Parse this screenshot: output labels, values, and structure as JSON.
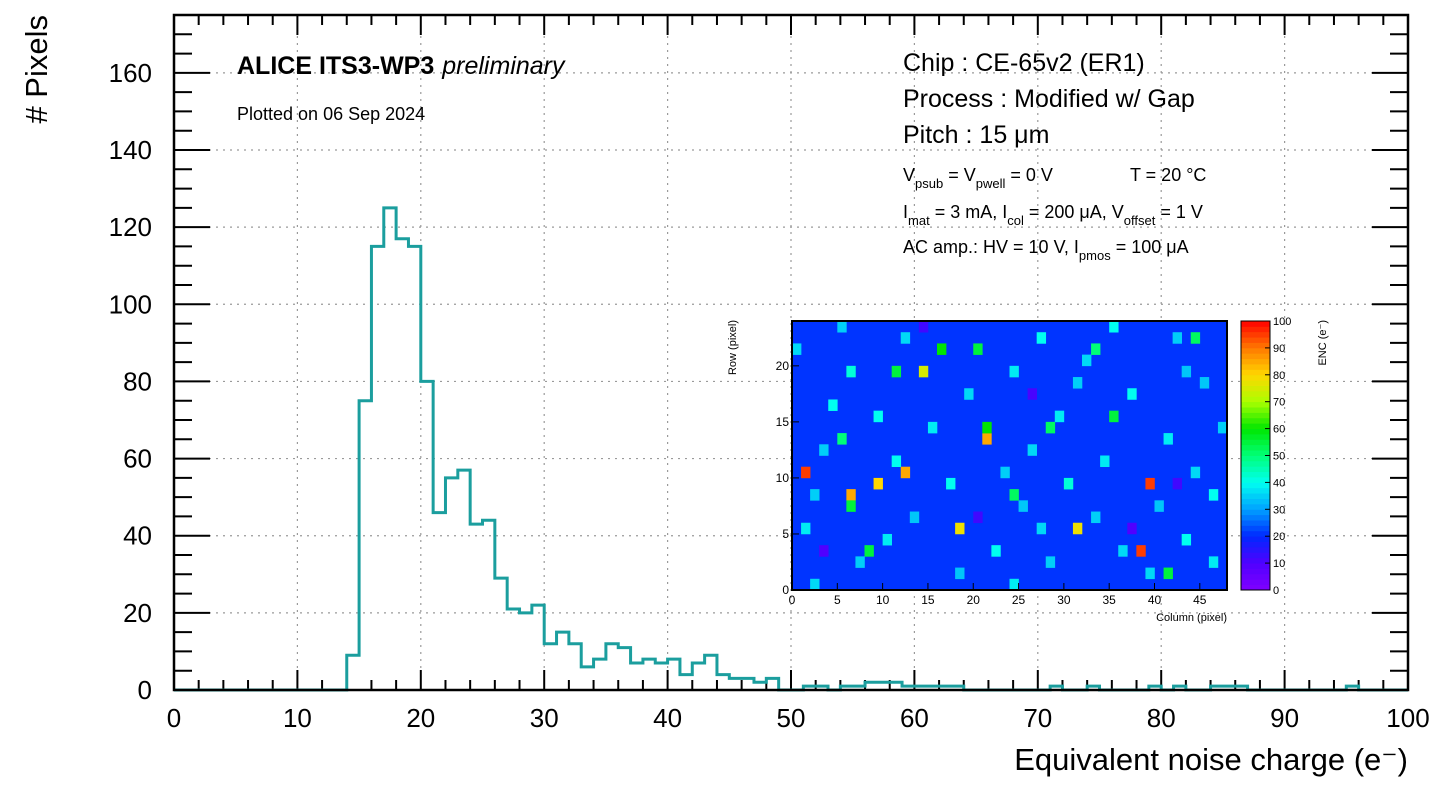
{
  "chart_data": [
    {
      "type": "histogram",
      "xlabel": "Equivalent noise charge (e⁻)",
      "ylabel": "# Pixels",
      "xlim": [
        0,
        100
      ],
      "ylim": [
        0,
        175
      ],
      "x_ticks": [
        "0",
        "10",
        "20",
        "30",
        "40",
        "50",
        "60",
        "70",
        "80",
        "90",
        "100"
      ],
      "y_ticks": [
        "0",
        "20",
        "40",
        "60",
        "80",
        "100",
        "120",
        "140",
        "160"
      ],
      "grid": true,
      "bin_width": 1,
      "color": "#1b9e9e",
      "bins": [
        [
          0,
          0
        ],
        [
          1,
          0
        ],
        [
          2,
          0
        ],
        [
          3,
          0
        ],
        [
          4,
          0
        ],
        [
          5,
          0
        ],
        [
          6,
          0
        ],
        [
          7,
          0
        ],
        [
          8,
          0
        ],
        [
          9,
          0
        ],
        [
          10,
          0
        ],
        [
          11,
          0
        ],
        [
          12,
          0
        ],
        [
          13,
          0
        ],
        [
          14,
          9
        ],
        [
          15,
          75
        ],
        [
          16,
          115
        ],
        [
          17,
          125
        ],
        [
          18,
          117
        ],
        [
          19,
          115
        ],
        [
          20,
          80
        ],
        [
          21,
          46
        ],
        [
          22,
          55
        ],
        [
          23,
          57
        ],
        [
          24,
          43
        ],
        [
          25,
          44
        ],
        [
          26,
          29
        ],
        [
          27,
          21
        ],
        [
          28,
          20
        ],
        [
          29,
          22
        ],
        [
          30,
          12
        ],
        [
          31,
          15
        ],
        [
          32,
          12
        ],
        [
          33,
          6
        ],
        [
          34,
          8
        ],
        [
          35,
          12
        ],
        [
          36,
          11
        ],
        [
          37,
          7
        ],
        [
          38,
          8
        ],
        [
          39,
          7
        ],
        [
          40,
          8
        ],
        [
          41,
          4
        ],
        [
          42,
          7
        ],
        [
          43,
          9
        ],
        [
          44,
          4
        ],
        [
          45,
          3
        ],
        [
          46,
          3
        ],
        [
          47,
          2
        ],
        [
          48,
          3
        ],
        [
          49,
          0
        ],
        [
          50,
          0
        ],
        [
          51,
          1
        ],
        [
          52,
          1
        ],
        [
          53,
          0
        ],
        [
          54,
          1
        ],
        [
          55,
          1
        ],
        [
          56,
          2
        ],
        [
          57,
          2
        ],
        [
          58,
          2
        ],
        [
          59,
          1
        ],
        [
          60,
          1
        ],
        [
          61,
          1
        ],
        [
          62,
          1
        ],
        [
          63,
          1
        ],
        [
          64,
          0
        ],
        [
          65,
          0
        ],
        [
          66,
          0
        ],
        [
          67,
          0
        ],
        [
          68,
          0
        ],
        [
          69,
          0
        ],
        [
          70,
          0
        ],
        [
          71,
          1
        ],
        [
          72,
          0
        ],
        [
          73,
          0
        ],
        [
          74,
          1
        ],
        [
          75,
          0
        ],
        [
          76,
          0
        ],
        [
          77,
          0
        ],
        [
          78,
          0
        ],
        [
          79,
          1
        ],
        [
          80,
          0
        ],
        [
          81,
          1
        ],
        [
          82,
          0
        ],
        [
          83,
          0
        ],
        [
          84,
          1
        ],
        [
          85,
          1
        ],
        [
          86,
          1
        ],
        [
          87,
          0
        ],
        [
          88,
          0
        ],
        [
          89,
          0
        ],
        [
          90,
          0
        ],
        [
          91,
          0
        ],
        [
          92,
          0
        ],
        [
          93,
          0
        ],
        [
          94,
          0
        ],
        [
          95,
          1
        ],
        [
          96,
          0
        ],
        [
          97,
          0
        ],
        [
          98,
          0
        ],
        [
          99,
          0
        ]
      ],
      "annotations": {
        "experiment": "ALICE ITS3-WP3",
        "status": "preliminary",
        "date": "Plotted on 06 Sep 2024",
        "chip": "Chip : CE-65v2 (ER1)",
        "process": "Process : Modified w/ Gap",
        "pitch": "Pitch : 15 μm",
        "bias_psub_a": "V",
        "bias_psub_sub": "psub",
        "bias_psub_b": " = V",
        "bias_psub_sub2": "pwell",
        "bias_psub_c": " = 0 V",
        "temperature": "T = 20 °C",
        "currents_a": "I",
        "currents_sub1": "mat",
        "currents_b": " = 3 mA, I",
        "currents_sub2": "col",
        "currents_c": " = 200 μA, V",
        "currents_sub3": "offset",
        "currents_d": " = 1 V",
        "acamp_a": "AC amp.: HV = 10 V, I",
        "acamp_sub": "pmos",
        "acamp_b": " = 100 μA"
      }
    },
    {
      "type": "heatmap",
      "xlabel": "Column (pixel)",
      "ylabel": "Row (pixel)",
      "zlabel": "ENC (e⁻)",
      "columns": 48,
      "rows": 24,
      "xlim": [
        0,
        48
      ],
      "ylim": [
        0,
        24
      ],
      "zlim": [
        0,
        100
      ],
      "x_ticks": [
        "0",
        "5",
        "10",
        "15",
        "20",
        "25",
        "30",
        "35",
        "40",
        "45"
      ],
      "y_ticks": [
        "0",
        "5",
        "10",
        "15",
        "20"
      ],
      "z_ticks": [
        "0",
        "10",
        "20",
        "30",
        "40",
        "50",
        "60",
        "70",
        "80",
        "90",
        "100"
      ],
      "background_enc": 21,
      "cells": [
        [
          1,
          10,
          95
        ],
        [
          6,
          8,
          85
        ],
        [
          9,
          9,
          80
        ],
        [
          12,
          10,
          85
        ],
        [
          21,
          13,
          85
        ],
        [
          18,
          5,
          78
        ],
        [
          31,
          5,
          78
        ],
        [
          38,
          3,
          95
        ],
        [
          39,
          9,
          95
        ],
        [
          14,
          19,
          75
        ],
        [
          21,
          14,
          60
        ],
        [
          20,
          21,
          55
        ],
        [
          35,
          15,
          55
        ],
        [
          16,
          21,
          60
        ],
        [
          6,
          7,
          55
        ],
        [
          8,
          3,
          55
        ],
        [
          2,
          8,
          35
        ],
        [
          3,
          12,
          35
        ],
        [
          4,
          16,
          40
        ],
        [
          6,
          19,
          42
        ],
        [
          7,
          2,
          35
        ],
        [
          10,
          4,
          38
        ],
        [
          11,
          11,
          40
        ],
        [
          12,
          22,
          36
        ],
        [
          13,
          6,
          34
        ],
        [
          15,
          14,
          38
        ],
        [
          17,
          9,
          40
        ],
        [
          19,
          17,
          36
        ],
        [
          22,
          3,
          40
        ],
        [
          23,
          10,
          35
        ],
        [
          24,
          19,
          38
        ],
        [
          25,
          7,
          34
        ],
        [
          26,
          12,
          36
        ],
        [
          27,
          22,
          40
        ],
        [
          28,
          2,
          35
        ],
        [
          29,
          15,
          38
        ],
        [
          30,
          9,
          42
        ],
        [
          32,
          20,
          36
        ],
        [
          33,
          6,
          35
        ],
        [
          34,
          11,
          38
        ],
        [
          36,
          3,
          36
        ],
        [
          37,
          17,
          40
        ],
        [
          40,
          7,
          34
        ],
        [
          41,
          13,
          38
        ],
        [
          42,
          22,
          35
        ],
        [
          43,
          4,
          40
        ],
        [
          44,
          10,
          36
        ],
        [
          45,
          18,
          34
        ],
        [
          46,
          2,
          38
        ],
        [
          47,
          14,
          35
        ],
        [
          0,
          21,
          36
        ],
        [
          1,
          5,
          38
        ],
        [
          5,
          23,
          35
        ],
        [
          9,
          15,
          40
        ],
        [
          18,
          1,
          34
        ],
        [
          24,
          0,
          38
        ],
        [
          27,
          5,
          36
        ],
        [
          31,
          18,
          35
        ],
        [
          35,
          23,
          40
        ],
        [
          39,
          1,
          36
        ],
        [
          43,
          19,
          34
        ],
        [
          46,
          8,
          40
        ],
        [
          2,
          0,
          36
        ],
        [
          11,
          19,
          55
        ],
        [
          28,
          14,
          52
        ],
        [
          33,
          21,
          50
        ],
        [
          41,
          1,
          55
        ],
        [
          44,
          22,
          52
        ],
        [
          5,
          13,
          50
        ],
        [
          24,
          8,
          52
        ],
        [
          3,
          3,
          10
        ],
        [
          20,
          6,
          12
        ],
        [
          37,
          5,
          10
        ],
        [
          14,
          23,
          12
        ],
        [
          26,
          17,
          11
        ],
        [
          42,
          9,
          12
        ]
      ]
    }
  ]
}
